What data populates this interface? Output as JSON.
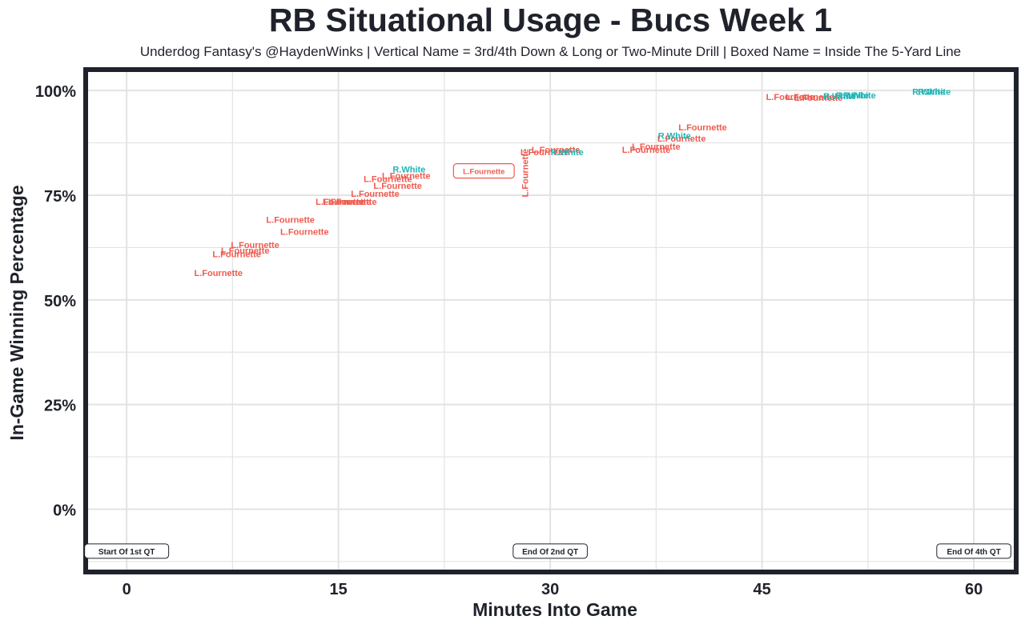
{
  "header": {
    "title": "RB Situational Usage - Bucs Week 1",
    "subtitle": "Underdog Fantasy's @HaydenWinks | Vertical Name = 3rd/4th Down & Long or Two-Minute Drill | Boxed Name = Inside The 5-Yard Line"
  },
  "colors": {
    "fournette": "#ef5a4f",
    "white": "#21b5b5",
    "frame": "#1f222b",
    "grid": "#e3e3e3"
  },
  "chart_data": {
    "type": "scatter",
    "title": "RB Situational Usage - Bucs Week 1",
    "xlabel": "Minutes Into Game",
    "ylabel": "In-Game Winning Percentage",
    "xlim": [
      -2.9,
      63.0
    ],
    "ylim": [
      -15,
      105
    ],
    "x_ticks": [
      0,
      15,
      30,
      45,
      60
    ],
    "x_tick_labels": [
      "0",
      "15",
      "30",
      "45",
      "60"
    ],
    "y_ticks": [
      0,
      25,
      50,
      75,
      100
    ],
    "y_tick_labels": [
      "0%",
      "25%",
      "50%",
      "75%",
      "100%"
    ],
    "grid": true,
    "quarter_markers": [
      {
        "x": 0,
        "y": -10,
        "label": "Start Of 1st QT"
      },
      {
        "x": 30,
        "y": -10,
        "label": "End Of 2nd QT"
      },
      {
        "x": 60,
        "y": -10,
        "label": "End Of 4th QT"
      }
    ],
    "series": [
      {
        "name": "L.Fournette",
        "color": "#ef5a4f",
        "points": [
          {
            "x": 6.5,
            "y": 56.5,
            "label": "L.Fournette"
          },
          {
            "x": 7.8,
            "y": 61.0,
            "label": "L.Fournette"
          },
          {
            "x": 8.4,
            "y": 61.8,
            "label": "L.Fournette"
          },
          {
            "x": 9.1,
            "y": 63.2,
            "label": "L.Fournette"
          },
          {
            "x": 12.6,
            "y": 66.3,
            "label": "L.Fournette"
          },
          {
            "x": 11.6,
            "y": 69.2,
            "label": "L.Fournette"
          },
          {
            "x": 15.1,
            "y": 73.5,
            "label": "L.Fournette"
          },
          {
            "x": 15.6,
            "y": 73.5,
            "label": "L.Fournette"
          },
          {
            "x": 16.0,
            "y": 73.5,
            "label": "L.Fournette"
          },
          {
            "x": 17.6,
            "y": 75.4,
            "label": "L.Fournette"
          },
          {
            "x": 19.2,
            "y": 77.3,
            "label": "L.Fournette"
          },
          {
            "x": 18.5,
            "y": 78.9,
            "label": "L.Fournette"
          },
          {
            "x": 19.8,
            "y": 79.7,
            "label": "L.Fournette"
          },
          {
            "x": 23.5,
            "y": 80.5,
            "label": "L.Fournette",
            "truncated": true
          },
          {
            "x": 25.3,
            "y": 80.8,
            "label": "L.Fournette",
            "boxed": true
          },
          {
            "x": 28.2,
            "y": 80.3,
            "label": "L.Fournette",
            "vertical": true
          },
          {
            "x": 29.6,
            "y": 85.3,
            "label": "L.Fournette"
          },
          {
            "x": 30.4,
            "y": 85.9,
            "label": "L.Fournette"
          },
          {
            "x": 36.8,
            "y": 85.9,
            "label": "L.Fournette"
          },
          {
            "x": 37.5,
            "y": 86.7,
            "label": "L.Fournette"
          },
          {
            "x": 39.3,
            "y": 88.6,
            "label": "L.Fournette"
          },
          {
            "x": 40.8,
            "y": 91.2,
            "label": "L.Fournette"
          },
          {
            "x": 47.0,
            "y": 98.5,
            "label": "L.Fournette"
          },
          {
            "x": 49.0,
            "y": 98.3,
            "label": "L.Fournette"
          },
          {
            "x": 48.4,
            "y": 98.5,
            "label": "L.Fournette"
          }
        ]
      },
      {
        "name": "R.White",
        "color": "#21b5b5",
        "points": [
          {
            "x": 20.0,
            "y": 81.2,
            "label": "R.White"
          },
          {
            "x": 31.2,
            "y": 85.3,
            "label": "R.White"
          },
          {
            "x": 38.8,
            "y": 89.2,
            "label": "R.White"
          },
          {
            "x": 50.5,
            "y": 98.7,
            "label": "R.White"
          },
          {
            "x": 51.4,
            "y": 98.9,
            "label": "R.White"
          },
          {
            "x": 51.9,
            "y": 98.9,
            "label": "R.White"
          },
          {
            "x": 56.8,
            "y": 99.7,
            "label": "R.White"
          },
          {
            "x": 57.2,
            "y": 99.7,
            "label": "R.White"
          }
        ]
      }
    ]
  }
}
